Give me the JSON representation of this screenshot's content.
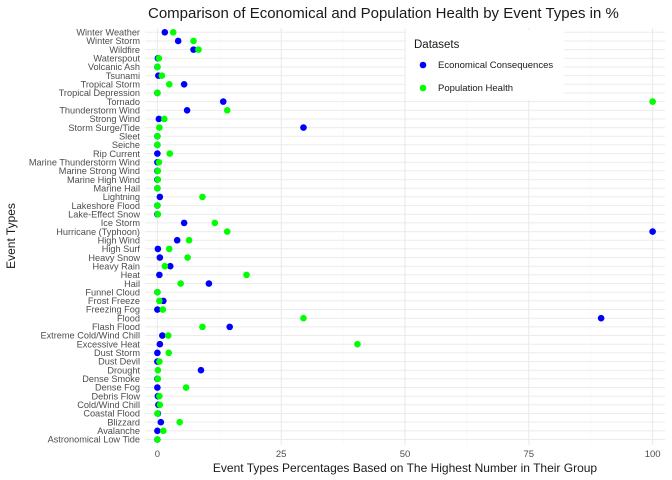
{
  "chart_data": {
    "type": "scatter",
    "title": "Comparison of Economical and Population Health by Event Types in %",
    "xlabel": "Event Types Percentages Based on The Highest Number in Their Group",
    "ylabel": "Event Types",
    "xlim": [
      -2.5,
      102.5
    ],
    "x_ticks": [
      "0",
      "25",
      "50",
      "75",
      "100"
    ],
    "x_tick_values": [
      0,
      25,
      50,
      75,
      100
    ],
    "grid": true,
    "legend": {
      "title": "Datasets",
      "placement": "top-right inside",
      "entries": [
        "Economical Consequences",
        "Population Health"
      ]
    },
    "colors": {
      "economic": "#0000ff",
      "health": "#00ff00",
      "grid_major": "#ebebeb",
      "grid_minor": "#f5f5f5"
    },
    "categories": [
      "Winter Weather",
      "Winter Storm",
      "Wildfire",
      "Waterspout",
      "Volcanic Ash",
      "Tsunami",
      "Tropical Storm",
      "Tropical Depression",
      "Tornado",
      "Thunderstorm Wind",
      "Strong Wind",
      "Storm Surge/Tide",
      "Sleet",
      "Seiche",
      "Rip Current",
      "Marine Thunderstorm Wind",
      "Marine Strong Wind",
      "Marine High Wind",
      "Marine Hail",
      "Lightning",
      "Lakeshore Flood",
      "Lake-Effect Snow",
      "Ice Storm",
      "Hurricane (Typhoon)",
      "High Wind",
      "High Surf",
      "Heavy Snow",
      "Heavy Rain",
      "Heat",
      "Hail",
      "Funnel Cloud",
      "Frost Freeze",
      "Freezing Fog",
      "Flood",
      "Flash Flood",
      "Extreme Cold/Wind Chill",
      "Excessive Heat",
      "Dust Storm",
      "Dust Devil",
      "Drought",
      "Dense Smoke",
      "Dense Fog",
      "Debris Flow",
      "Cold/Wind Chill",
      "Coastal Flood",
      "Blizzard",
      "Avalanche",
      "Astronomical Low Tide"
    ],
    "series": [
      {
        "name": "Economical Consequences",
        "values": [
          1.5,
          4.2,
          7.3,
          0.1,
          0.0,
          0.2,
          5.4,
          0.0,
          13.3,
          6.0,
          0.3,
          29.5,
          0.0,
          0.0,
          0.0,
          0.0,
          0.0,
          0.0,
          0.0,
          0.5,
          0.0,
          0.0,
          5.4,
          100.0,
          4.0,
          0.1,
          0.5,
          2.6,
          0.4,
          10.4,
          0.0,
          1.2,
          0.0,
          89.6,
          14.6,
          1.0,
          0.5,
          0.0,
          0.0,
          8.8,
          0.0,
          0.0,
          0.1,
          0.2,
          0.1,
          0.7,
          0.0,
          0.0
        ]
      },
      {
        "name": "Population Health",
        "values": [
          3.2,
          7.3,
          8.3,
          0.3,
          0.0,
          0.9,
          2.4,
          0.0,
          100.0,
          14.1,
          1.4,
          0.4,
          0.0,
          0.0,
          2.5,
          0.3,
          0.1,
          0.1,
          0.0,
          9.1,
          0.0,
          0.1,
          11.6,
          14.1,
          6.4,
          2.4,
          6.1,
          1.5,
          18.0,
          4.7,
          0.0,
          0.4,
          1.1,
          29.5,
          9.1,
          2.2,
          40.4,
          2.3,
          0.4,
          0.1,
          0.1,
          5.8,
          0.4,
          0.5,
          0.0,
          4.5,
          1.2,
          0.0
        ]
      }
    ]
  }
}
